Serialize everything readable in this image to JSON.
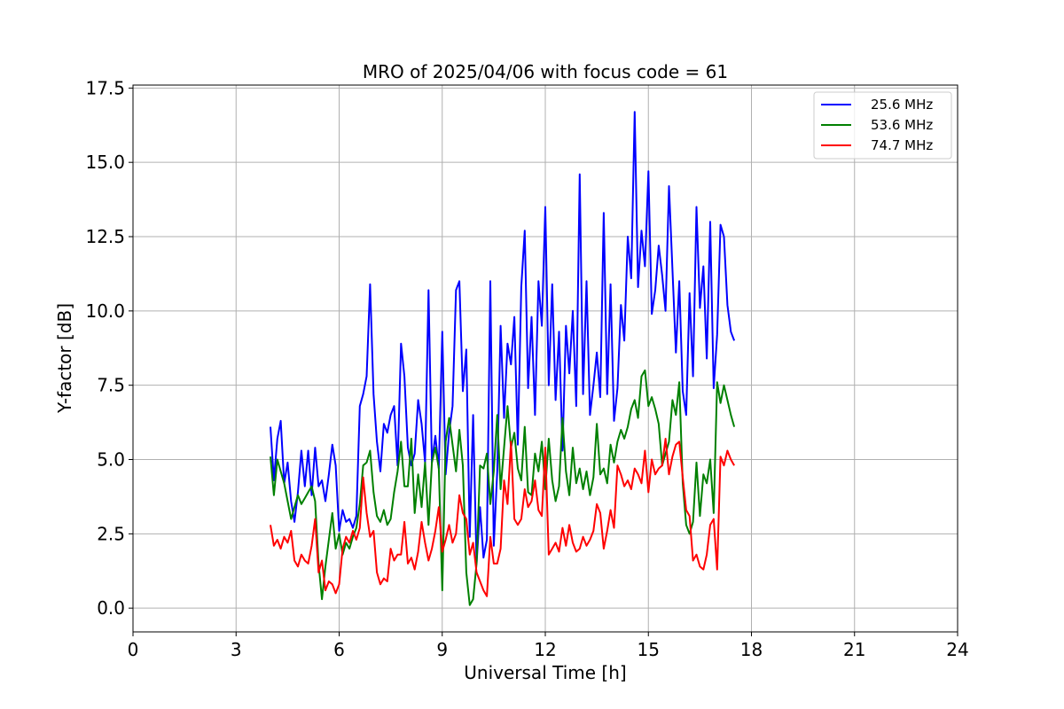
{
  "chart_data": {
    "type": "line",
    "title": "MRO of 2025/04/06 with focus code = 61",
    "xlabel": "Universal Time [h]",
    "ylabel": "Y-factor [dB]",
    "xlim": [
      0,
      24
    ],
    "ylim": [
      -0.8,
      17.6
    ],
    "x_ticks": [
      0,
      3,
      6,
      9,
      12,
      15,
      18,
      21,
      24
    ],
    "x_tick_labels": [
      "0",
      "3",
      "6",
      "9",
      "12",
      "15",
      "18",
      "21",
      "24"
    ],
    "y_ticks": [
      0.0,
      2.5,
      5.0,
      7.5,
      10.0,
      12.5,
      15.0,
      17.5
    ],
    "y_tick_labels": [
      "0.0",
      "2.5",
      "5.0",
      "7.5",
      "10.0",
      "12.5",
      "15.0",
      "17.5"
    ],
    "grid": true,
    "legend_position": "top-right",
    "series": [
      {
        "name": "25.6 MHz",
        "color": "#0000ff",
        "x": [
          4.0,
          4.1,
          4.2,
          4.3,
          4.4,
          4.5,
          4.6,
          4.7,
          4.8,
          4.9,
          5.0,
          5.1,
          5.2,
          5.3,
          5.4,
          5.5,
          5.6,
          5.7,
          5.8,
          5.9,
          6.0,
          6.1,
          6.2,
          6.3,
          6.4,
          6.5,
          6.6,
          6.7,
          6.8,
          6.9,
          7.0,
          7.1,
          7.2,
          7.3,
          7.4,
          7.5,
          7.6,
          7.7,
          7.8,
          7.9,
          8.0,
          8.1,
          8.2,
          8.3,
          8.4,
          8.5,
          8.6,
          8.7,
          8.8,
          8.9,
          9.0,
          9.1,
          9.2,
          9.3,
          9.4,
          9.5,
          9.6,
          9.7,
          9.8,
          9.9,
          10.0,
          10.1,
          10.2,
          10.3,
          10.4,
          10.5,
          10.6,
          10.7,
          10.8,
          10.9,
          11.0,
          11.1,
          11.2,
          11.3,
          11.4,
          11.5,
          11.6,
          11.7,
          11.8,
          11.9,
          12.0,
          12.1,
          12.2,
          12.3,
          12.4,
          12.5,
          12.6,
          12.7,
          12.8,
          12.9,
          13.0,
          13.1,
          13.2,
          13.3,
          13.4,
          13.5,
          13.6,
          13.7,
          13.8,
          13.9,
          14.0,
          14.1,
          14.2,
          14.3,
          14.4,
          14.5,
          14.6,
          14.7,
          14.8,
          14.9,
          15.0,
          15.1,
          15.2,
          15.3,
          15.4,
          15.5,
          15.6,
          15.7,
          15.8,
          15.9,
          16.0,
          16.1,
          16.2,
          16.3,
          16.4,
          16.5,
          16.6,
          16.7,
          16.8,
          16.9,
          17.0,
          17.1,
          17.2,
          17.3,
          17.4,
          17.5
        ],
        "values": [
          6.1,
          4.3,
          5.7,
          6.3,
          4.2,
          4.9,
          3.6,
          2.9,
          3.9,
          5.3,
          4.1,
          5.3,
          3.8,
          5.4,
          4.1,
          4.3,
          3.6,
          4.5,
          5.5,
          4.8,
          2.6,
          3.3,
          2.9,
          3.0,
          2.7,
          3.1,
          6.8,
          7.2,
          7.8,
          10.9,
          7.2,
          5.6,
          4.6,
          6.2,
          5.9,
          6.5,
          6.8,
          4.8,
          8.9,
          7.8,
          5.4,
          4.8,
          5.2,
          7.0,
          6.2,
          4.9,
          10.7,
          4.9,
          5.8,
          4.7,
          9.3,
          4.5,
          5.9,
          6.8,
          10.7,
          11.0,
          7.3,
          8.7,
          2.4,
          6.5,
          1.5,
          3.4,
          1.7,
          2.3,
          11.0,
          2.1,
          4.6,
          9.5,
          6.4,
          8.9,
          8.2,
          9.8,
          5.5,
          10.8,
          12.7,
          7.4,
          9.8,
          6.5,
          11.0,
          9.5,
          13.5,
          7.5,
          10.9,
          7.0,
          9.3,
          5.3,
          9.5,
          7.9,
          10.0,
          6.8,
          14.6,
          7.2,
          11.0,
          6.5,
          7.5,
          8.6,
          7.1,
          13.3,
          7.2,
          10.9,
          6.3,
          7.4,
          10.2,
          9.0,
          12.5,
          11.1,
          16.7,
          10.8,
          12.7,
          11.5,
          14.7,
          9.9,
          10.7,
          12.2,
          11.2,
          10.0,
          14.2,
          11.4,
          8.6,
          11.0,
          7.3,
          6.5,
          10.6,
          7.8,
          13.5,
          10.1,
          11.5,
          8.4,
          13.0,
          7.4,
          9.2,
          12.9,
          12.5,
          10.2,
          9.3,
          9.0
        ]
      },
      {
        "name": "53.6 MHz",
        "color": "#008000",
        "x": [
          4.0,
          4.1,
          4.2,
          4.3,
          4.4,
          4.5,
          4.6,
          4.7,
          4.8,
          4.9,
          5.0,
          5.1,
          5.2,
          5.3,
          5.4,
          5.5,
          5.6,
          5.7,
          5.8,
          5.9,
          6.0,
          6.1,
          6.2,
          6.3,
          6.4,
          6.5,
          6.6,
          6.7,
          6.8,
          6.9,
          7.0,
          7.1,
          7.2,
          7.3,
          7.4,
          7.5,
          7.6,
          7.7,
          7.8,
          7.9,
          8.0,
          8.1,
          8.2,
          8.3,
          8.4,
          8.5,
          8.6,
          8.7,
          8.8,
          8.9,
          9.0,
          9.1,
          9.2,
          9.3,
          9.4,
          9.5,
          9.6,
          9.7,
          9.8,
          9.9,
          10.0,
          10.1,
          10.2,
          10.3,
          10.4,
          10.5,
          10.6,
          10.7,
          10.8,
          10.9,
          11.0,
          11.1,
          11.2,
          11.3,
          11.4,
          11.5,
          11.6,
          11.7,
          11.8,
          11.9,
          12.0,
          12.1,
          12.2,
          12.3,
          12.4,
          12.5,
          12.6,
          12.7,
          12.8,
          12.9,
          13.0,
          13.1,
          13.2,
          13.3,
          13.4,
          13.5,
          13.6,
          13.7,
          13.8,
          13.9,
          14.0,
          14.1,
          14.2,
          14.3,
          14.4,
          14.5,
          14.6,
          14.7,
          14.8,
          14.9,
          15.0,
          15.1,
          15.2,
          15.3,
          15.4,
          15.5,
          15.6,
          15.7,
          15.8,
          15.9,
          16.0,
          16.1,
          16.2,
          16.3,
          16.4,
          16.5,
          16.6,
          16.7,
          16.8,
          16.9,
          17.0,
          17.1,
          17.2,
          17.3,
          17.4,
          17.5
        ],
        "values": [
          5.1,
          3.8,
          5.0,
          4.6,
          4.2,
          3.6,
          3.0,
          3.4,
          3.8,
          3.5,
          3.7,
          3.9,
          4.1,
          3.6,
          1.5,
          0.3,
          1.4,
          2.3,
          3.2,
          2.0,
          2.5,
          1.8,
          2.2,
          2.0,
          2.4,
          2.7,
          3.5,
          4.8,
          4.9,
          5.3,
          3.9,
          3.1,
          2.9,
          3.3,
          2.8,
          3.0,
          3.9,
          4.6,
          5.6,
          4.1,
          4.1,
          5.7,
          3.2,
          4.5,
          3.4,
          4.9,
          2.8,
          4.9,
          5.4,
          4.7,
          0.6,
          5.6,
          6.4,
          5.5,
          4.6,
          6.0,
          4.8,
          1.2,
          0.1,
          0.3,
          1.5,
          4.8,
          4.7,
          5.2,
          3.5,
          4.6,
          6.5,
          4.0,
          5.4,
          6.8,
          5.4,
          5.9,
          4.7,
          4.3,
          6.1,
          3.9,
          3.8,
          5.2,
          4.6,
          5.6,
          4.0,
          5.7,
          4.3,
          3.6,
          4.1,
          6.4,
          4.6,
          3.8,
          5.4,
          4.2,
          4.7,
          4.0,
          4.6,
          3.8,
          4.4,
          6.2,
          4.5,
          4.7,
          4.2,
          5.5,
          4.9,
          5.6,
          6.0,
          5.7,
          6.1,
          6.7,
          7.0,
          6.4,
          7.8,
          8.0,
          6.8,
          7.1,
          6.7,
          6.2,
          4.8,
          5.2,
          5.6,
          7.0,
          6.5,
          7.6,
          4.2,
          2.8,
          2.5,
          2.9,
          4.9,
          3.1,
          4.5,
          4.2,
          5.0,
          3.2,
          7.6,
          6.9,
          7.5,
          7.0,
          6.5,
          6.1
        ]
      },
      {
        "name": "74.7 MHz",
        "color": "#ff0000",
        "x": [
          4.0,
          4.1,
          4.2,
          4.3,
          4.4,
          4.5,
          4.6,
          4.7,
          4.8,
          4.9,
          5.0,
          5.1,
          5.2,
          5.3,
          5.4,
          5.5,
          5.6,
          5.7,
          5.8,
          5.9,
          6.0,
          6.1,
          6.2,
          6.3,
          6.4,
          6.5,
          6.6,
          6.7,
          6.8,
          6.9,
          7.0,
          7.1,
          7.2,
          7.3,
          7.4,
          7.5,
          7.6,
          7.7,
          7.8,
          7.9,
          8.0,
          8.1,
          8.2,
          8.3,
          8.4,
          8.5,
          8.6,
          8.7,
          8.8,
          8.9,
          9.0,
          9.1,
          9.2,
          9.3,
          9.4,
          9.5,
          9.6,
          9.7,
          9.8,
          9.9,
          10.0,
          10.1,
          10.2,
          10.3,
          10.4,
          10.5,
          10.6,
          10.7,
          10.8,
          10.9,
          11.0,
          11.1,
          11.2,
          11.3,
          11.4,
          11.5,
          11.6,
          11.7,
          11.8,
          11.9,
          12.0,
          12.1,
          12.2,
          12.3,
          12.4,
          12.5,
          12.6,
          12.7,
          12.8,
          12.9,
          13.0,
          13.1,
          13.2,
          13.3,
          13.4,
          13.5,
          13.6,
          13.7,
          13.8,
          13.9,
          14.0,
          14.1,
          14.2,
          14.3,
          14.4,
          14.5,
          14.6,
          14.7,
          14.8,
          14.9,
          15.0,
          15.1,
          15.2,
          15.3,
          15.4,
          15.5,
          15.6,
          15.7,
          15.8,
          15.9,
          16.0,
          16.1,
          16.2,
          16.3,
          16.4,
          16.5,
          16.6,
          16.7,
          16.8,
          16.9,
          17.0,
          17.1,
          17.2,
          17.3,
          17.4,
          17.5
        ],
        "values": [
          2.8,
          2.1,
          2.3,
          2.0,
          2.4,
          2.2,
          2.6,
          1.6,
          1.4,
          1.8,
          1.6,
          1.5,
          2.1,
          3.0,
          1.2,
          1.6,
          0.6,
          0.9,
          0.8,
          0.5,
          0.8,
          2.0,
          2.4,
          2.2,
          2.6,
          2.3,
          2.7,
          4.4,
          3.2,
          2.4,
          2.6,
          1.2,
          0.8,
          1.0,
          0.9,
          2.0,
          1.6,
          1.8,
          1.8,
          2.9,
          1.5,
          1.7,
          1.3,
          1.9,
          2.9,
          2.2,
          1.6,
          2.0,
          2.6,
          3.4,
          1.9,
          2.3,
          2.8,
          2.2,
          2.5,
          3.8,
          3.2,
          3.0,
          1.8,
          2.2,
          1.2,
          0.9,
          0.6,
          0.4,
          2.4,
          1.5,
          1.5,
          2.0,
          4.3,
          3.5,
          5.6,
          3.0,
          2.8,
          3.0,
          4.0,
          3.4,
          3.6,
          4.3,
          3.3,
          3.1,
          5.4,
          1.8,
          2.0,
          2.2,
          1.9,
          2.7,
          2.1,
          2.8,
          2.2,
          1.9,
          2.0,
          2.4,
          2.1,
          2.3,
          2.6,
          3.5,
          3.2,
          2.0,
          2.6,
          3.3,
          2.7,
          4.8,
          4.5,
          4.1,
          4.3,
          4.0,
          4.7,
          4.5,
          4.2,
          5.3,
          3.9,
          5.0,
          4.5,
          4.7,
          4.8,
          5.7,
          4.5,
          5.1,
          5.5,
          5.6,
          4.4,
          3.3,
          3.1,
          1.6,
          1.8,
          1.4,
          1.3,
          1.8,
          2.8,
          3.0,
          1.3,
          5.1,
          4.8,
          5.3,
          5.0,
          4.8
        ]
      }
    ]
  }
}
